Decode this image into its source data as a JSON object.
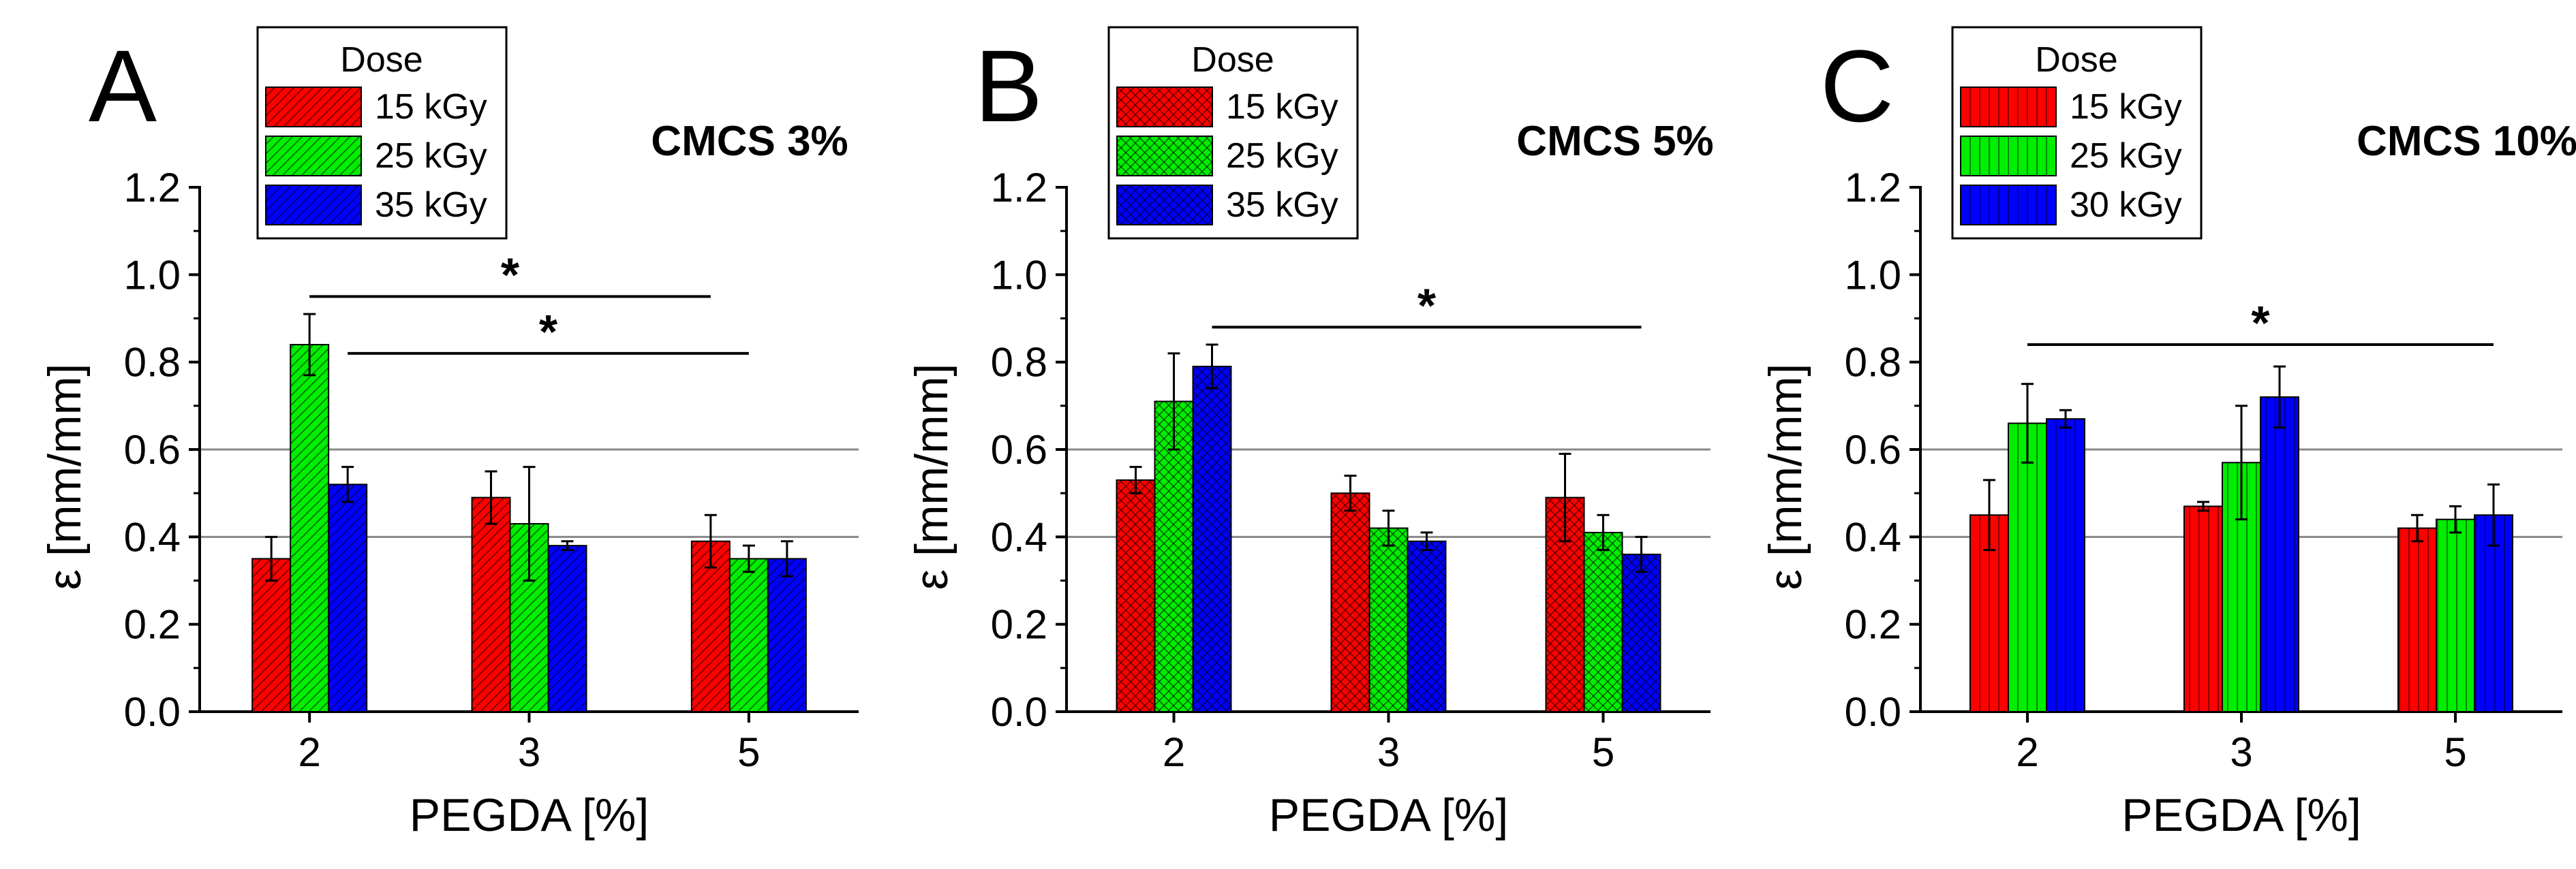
{
  "colors": {
    "red": "#ff0000",
    "green": "#00ee00",
    "blue": "#0000ff",
    "grid": "#888888",
    "axis": "#000000"
  },
  "chart_data": [
    {
      "type": "bar",
      "panel_letter": "A",
      "title": "CMCS 3%",
      "xlabel": "PEGDA [%]",
      "ylabel": "ε  [mm/mm]",
      "ylim": [
        0,
        1.2
      ],
      "yticks": [
        "0.0",
        "0.2",
        "0.4",
        "0.6",
        "0.8",
        "1.0",
        "1.2"
      ],
      "gridlines": [
        0.4,
        0.6
      ],
      "categories": [
        "2",
        "3",
        "5"
      ],
      "pattern": "diagonal",
      "legend": {
        "title": "Dose"
      },
      "series": [
        {
          "name": "15 kGy",
          "color": "#ff0000",
          "values": [
            0.35,
            0.49,
            0.39
          ],
          "errors": [
            0.05,
            0.06,
            0.06
          ]
        },
        {
          "name": "25 kGy",
          "color": "#00ee00",
          "values": [
            0.84,
            0.43,
            0.35
          ],
          "errors": [
            0.07,
            0.13,
            0.03
          ]
        },
        {
          "name": "35 kGy",
          "color": "#0000ff",
          "values": [
            0.52,
            0.38,
            0.35
          ],
          "errors": [
            0.04,
            0.01,
            0.04
          ]
        }
      ],
      "significance": [
        {
          "label": "*",
          "from": [
            0,
            1
          ],
          "to": [
            2,
            0
          ],
          "y": 0.95
        },
        {
          "label": "*",
          "from": [
            0,
            2
          ],
          "to": [
            2,
            1
          ],
          "y": 0.82
        }
      ]
    },
    {
      "type": "bar",
      "panel_letter": "B",
      "title": "CMCS 5%",
      "xlabel": "PEGDA [%]",
      "ylabel": "ε  [mm/mm]",
      "ylim": [
        0,
        1.2
      ],
      "yticks": [
        "0.0",
        "0.2",
        "0.4",
        "0.6",
        "0.8",
        "1.0",
        "1.2"
      ],
      "gridlines": [
        0.4,
        0.6
      ],
      "categories": [
        "2",
        "3",
        "5"
      ],
      "pattern": "crosshatch",
      "legend": {
        "title": "Dose"
      },
      "series": [
        {
          "name": "15 kGy",
          "color": "#ff0000",
          "values": [
            0.53,
            0.5,
            0.49
          ],
          "errors": [
            0.03,
            0.04,
            0.1
          ]
        },
        {
          "name": "25 kGy",
          "color": "#00ee00",
          "values": [
            0.71,
            0.42,
            0.41
          ],
          "errors": [
            0.11,
            0.04,
            0.04
          ]
        },
        {
          "name": "35 kGy",
          "color": "#0000ff",
          "values": [
            0.79,
            0.39,
            0.36
          ],
          "errors": [
            0.05,
            0.02,
            0.04
          ]
        }
      ],
      "significance": [
        {
          "label": "*",
          "from": [
            0,
            2
          ],
          "to": [
            2,
            2
          ],
          "y": 0.88
        }
      ]
    },
    {
      "type": "bar",
      "panel_letter": "C",
      "title": "CMCS 10%",
      "xlabel": "PEGDA [%]",
      "ylabel": "ε  [mm/mm]",
      "ylim": [
        0,
        1.2
      ],
      "yticks": [
        "0.0",
        "0.2",
        "0.4",
        "0.6",
        "0.8",
        "1.0",
        "1.2"
      ],
      "gridlines": [
        0.4,
        0.6
      ],
      "categories": [
        "2",
        "3",
        "5"
      ],
      "pattern": "vertical",
      "legend": {
        "title": "Dose"
      },
      "series": [
        {
          "name": "15 kGy",
          "color": "#ff0000",
          "values": [
            0.45,
            0.47,
            0.42
          ],
          "errors": [
            0.08,
            0.01,
            0.03
          ]
        },
        {
          "name": "25 kGy",
          "color": "#00ee00",
          "values": [
            0.66,
            0.57,
            0.44
          ],
          "errors": [
            0.09,
            0.13,
            0.03
          ]
        },
        {
          "name": "30 kGy",
          "color": "#0000ff",
          "values": [
            0.67,
            0.72,
            0.45
          ],
          "errors": [
            0.02,
            0.07,
            0.07
          ]
        }
      ],
      "significance": [
        {
          "label": "*",
          "from": [
            0,
            1
          ],
          "to": [
            2,
            2
          ],
          "y": 0.84
        }
      ]
    }
  ]
}
